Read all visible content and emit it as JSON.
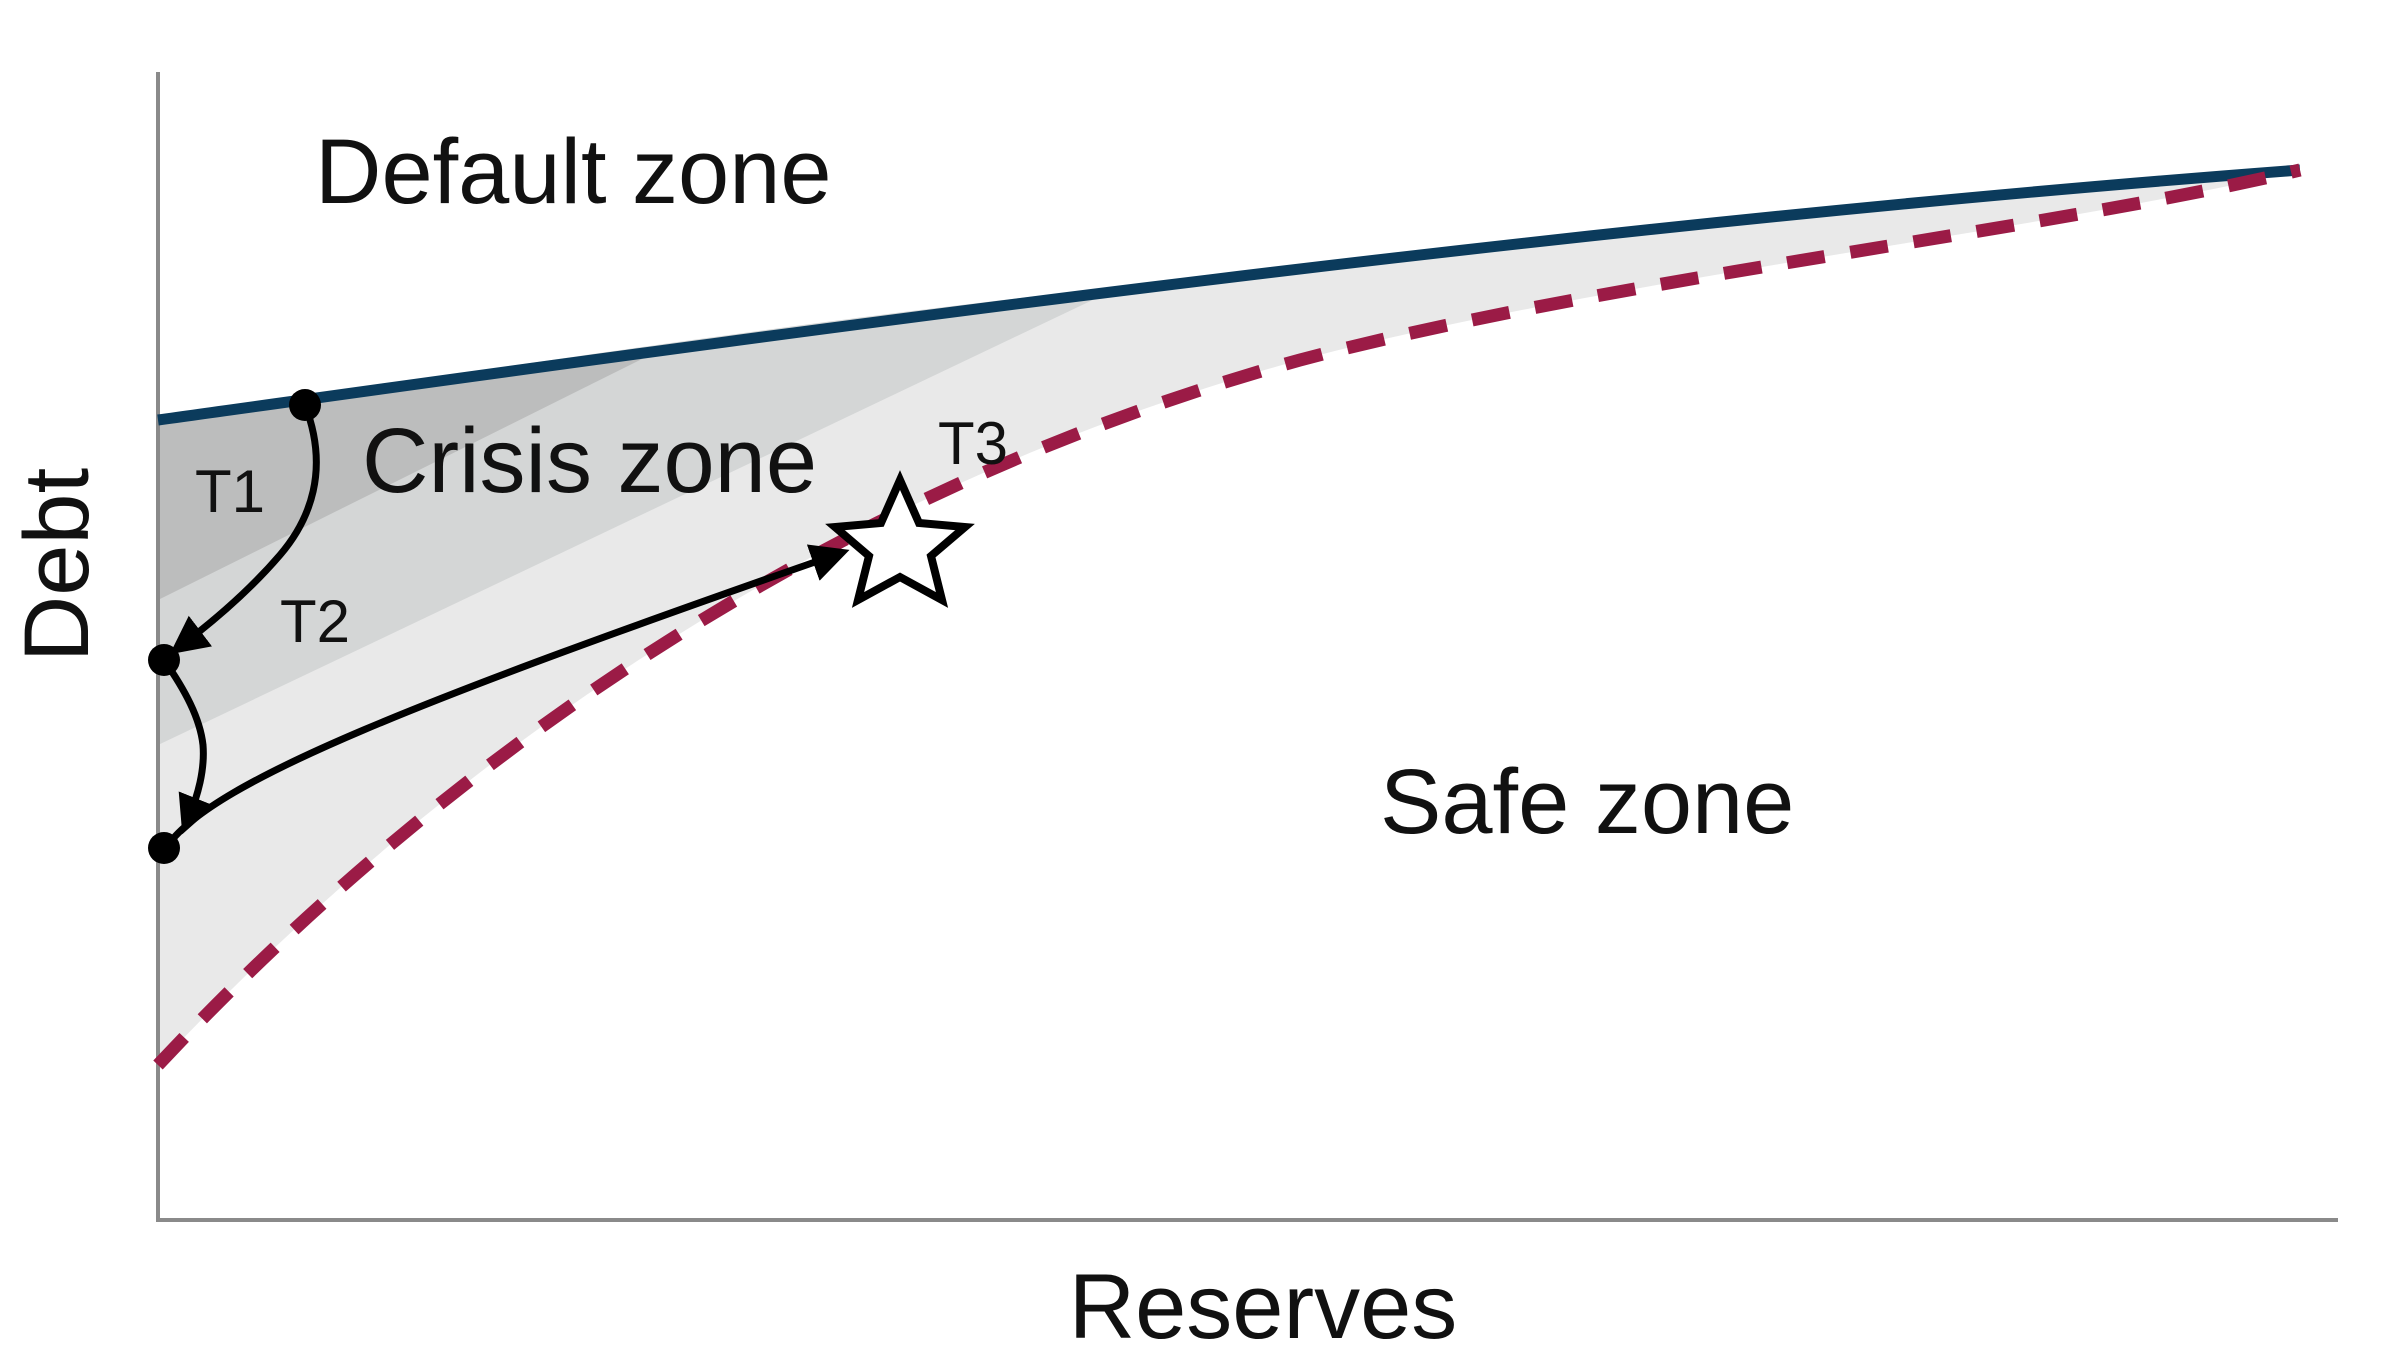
{
  "axes": {
    "x_label": "Reserves",
    "y_label": "Debt"
  },
  "zones": {
    "default": "Default zone",
    "crisis": "Crisis zone",
    "safe": "Safe zone"
  },
  "transitions": {
    "t1": "T1",
    "t2": "T2",
    "t3": "T3"
  },
  "colors": {
    "default_boundary": "#0b3b5c",
    "safe_boundary": "#9b1b46",
    "crisis_light": "#e9e9e9",
    "crisis_mid": "#d4d6d6",
    "crisis_dark": "#bcbdbd",
    "axis": "#8a8a8a",
    "path": "#000000"
  },
  "icons": {
    "target": "star-outline-icon"
  }
}
